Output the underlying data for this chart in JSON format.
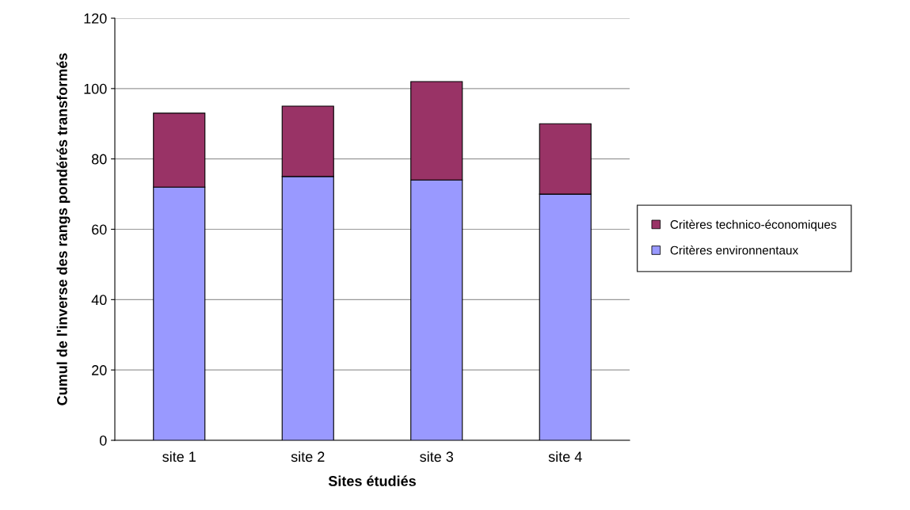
{
  "chart_data": {
    "type": "bar",
    "stacked": true,
    "xlabel": "Sites étudiés",
    "ylabel": "Cumul de l'inverse des rangs pondérés transformés",
    "categories": [
      "site 1",
      "site 2",
      "site 3",
      "site 4"
    ],
    "series": [
      {
        "name": "Critères environnentaux",
        "color": "#9999ff",
        "values": [
          72,
          75,
          74,
          70
        ]
      },
      {
        "name": "Critères technico-économiques",
        "color": "#993366",
        "values": [
          21,
          20,
          28,
          20
        ]
      }
    ],
    "ylim": [
      0,
      120
    ],
    "yticks": [
      0,
      20,
      40,
      60,
      80,
      100,
      120
    ],
    "grid": "y",
    "legend": "right"
  }
}
